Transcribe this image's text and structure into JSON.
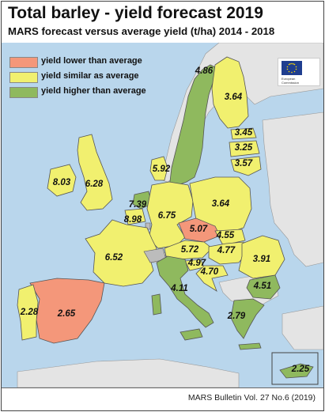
{
  "title": "Total barley - yield forecast 2019",
  "subtitle": "MARS forecast versus average yield (t/ha) 2014 - 2018",
  "legend": [
    {
      "label": "yield lower than average",
      "color": "#f4977a"
    },
    {
      "label": "yield similar as average",
      "color": "#f1f06f"
    },
    {
      "label": "yield higher than average",
      "color": "#8fb95e"
    }
  ],
  "colors": {
    "sea": "#b9d6ec",
    "non_eu_land": "#e4e4e4",
    "no_data": "#bcbcbc",
    "border": "#555555"
  },
  "logo": {
    "line1": "European",
    "line2": "Commission"
  },
  "regions": [
    {
      "id": "norway-sweden",
      "value": "4.86",
      "category": "higher"
    },
    {
      "id": "finland",
      "value": "3.64",
      "category": "similar"
    },
    {
      "id": "estonia",
      "value": "3.45",
      "category": "similar"
    },
    {
      "id": "latvia",
      "value": "3.25",
      "category": "similar"
    },
    {
      "id": "lithuania",
      "value": "3.57",
      "category": "similar"
    },
    {
      "id": "denmark",
      "value": "5.92",
      "category": "similar"
    },
    {
      "id": "ireland",
      "value": "8.03",
      "category": "similar"
    },
    {
      "id": "united-kingdom",
      "value": "6.28",
      "category": "similar"
    },
    {
      "id": "netherlands",
      "value": "7.39",
      "category": "higher"
    },
    {
      "id": "belgium",
      "value": "8.98",
      "category": "similar"
    },
    {
      "id": "germany",
      "value": "6.75",
      "category": "similar"
    },
    {
      "id": "poland",
      "value": "3.64",
      "category": "similar"
    },
    {
      "id": "czechia",
      "value": "5.07",
      "category": "lower"
    },
    {
      "id": "slovakia",
      "value": "4.55",
      "category": "similar"
    },
    {
      "id": "austria",
      "value": "5.72",
      "category": "similar"
    },
    {
      "id": "hungary",
      "value": "4.77",
      "category": "similar"
    },
    {
      "id": "slovenia",
      "value": "4.97",
      "category": "similar"
    },
    {
      "id": "croatia",
      "value": "4.70",
      "category": "similar"
    },
    {
      "id": "romania",
      "value": "3.91",
      "category": "similar"
    },
    {
      "id": "bulgaria",
      "value": "4.51",
      "category": "higher"
    },
    {
      "id": "france",
      "value": "6.52",
      "category": "similar"
    },
    {
      "id": "italy",
      "value": "4.11",
      "category": "higher"
    },
    {
      "id": "portugal",
      "value": "2.28",
      "category": "similar"
    },
    {
      "id": "spain",
      "value": "2.65",
      "category": "lower"
    },
    {
      "id": "greece",
      "value": "2.79",
      "category": "higher"
    },
    {
      "id": "cyprus",
      "value": "2.25",
      "category": "higher"
    }
  ],
  "footer": "MARS Bulletin Vol. 27 No.6 (2019)"
}
